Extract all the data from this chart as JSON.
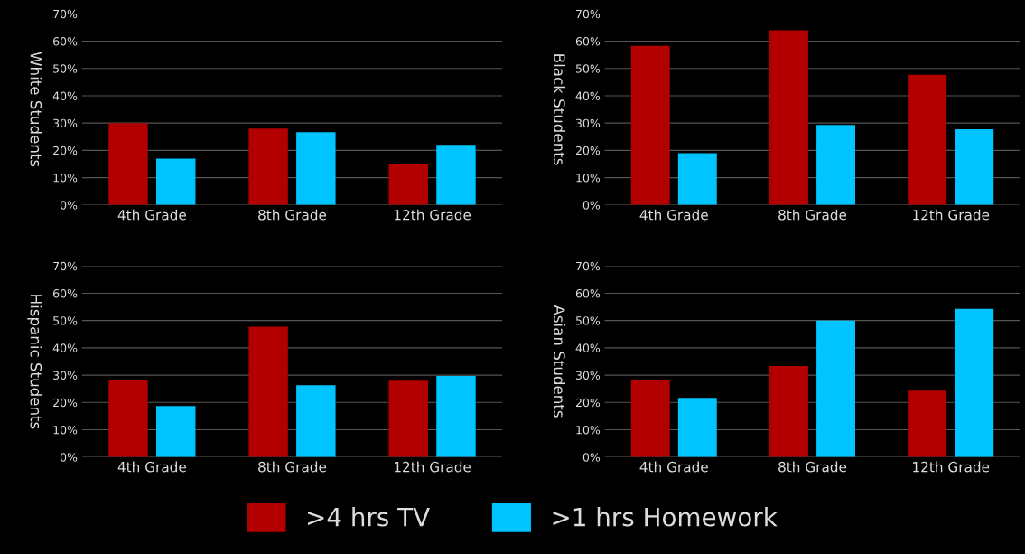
{
  "chart_data": [
    {
      "type": "bar",
      "ylabel": "White Students",
      "categories": [
        "4th Grade",
        "8th Grade",
        "12th Grade"
      ],
      "series": [
        {
          "name": ">4 hrs TV",
          "color": "#b20000",
          "values": [
            30,
            28,
            15
          ]
        },
        {
          "name": ">1 hrs Homework",
          "color": "#00c4ff",
          "values": [
            17,
            26.7,
            22
          ]
        }
      ],
      "ylim": [
        0,
        70
      ],
      "yticks": [
        {
          "value": 0,
          "label": "0%"
        },
        {
          "value": 10,
          "label": "10%"
        },
        {
          "value": 20,
          "label": "20%"
        },
        {
          "value": 30,
          "label": "30%"
        },
        {
          "value": 40,
          "label": "40%"
        },
        {
          "value": 50,
          "label": "50%"
        },
        {
          "value": 60,
          "label": "60%"
        },
        {
          "value": 70,
          "label": "70%"
        }
      ],
      "grid": "y",
      "legend": "bottom"
    },
    {
      "type": "bar",
      "ylabel": "Black Students",
      "categories": [
        "4th Grade",
        "8th Grade",
        "12th Grade"
      ],
      "series": [
        {
          "color": "#b20000",
          "values": [
            58.3,
            64,
            47.7
          ]
        },
        {
          "color": "#00c4ff",
          "values": [
            19,
            29.3,
            27.7
          ]
        }
      ],
      "ylim": [
        0,
        70
      ],
      "yticks": [
        {
          "value": 0,
          "label": "0%"
        },
        {
          "value": 10,
          "label": "10%"
        },
        {
          "value": 20,
          "label": "20%"
        },
        {
          "value": 30,
          "label": "30%"
        },
        {
          "value": 40,
          "label": "40%"
        },
        {
          "value": 50,
          "label": "50%"
        },
        {
          "value": 60,
          "label": "60%"
        },
        {
          "value": 70,
          "label": "70%"
        }
      ],
      "grid": "y"
    },
    {
      "type": "bar",
      "ylabel": "Hispanic Students",
      "categories": [
        "4th Grade",
        "8th Grade",
        "12th Grade"
      ],
      "series": [
        {
          "color": "#b20000",
          "values": [
            28.3,
            47.7,
            28
          ]
        },
        {
          "color": "#00c4ff",
          "values": [
            18.7,
            26.3,
            29.7
          ]
        }
      ],
      "ylim": [
        0,
        70
      ],
      "yticks": [
        {
          "value": 0,
          "label": "0%"
        },
        {
          "value": 10,
          "label": "10%"
        },
        {
          "value": 20,
          "label": "20%"
        },
        {
          "value": 30,
          "label": "30%"
        },
        {
          "value": 40,
          "label": "40%"
        },
        {
          "value": 50,
          "label": "50%"
        },
        {
          "value": 60,
          "label": "60%"
        },
        {
          "value": 70,
          "label": "70%"
        }
      ],
      "grid": "y"
    },
    {
      "type": "bar",
      "ylabel": "Asian Students",
      "categories": [
        "4th Grade",
        "8th Grade",
        "12th Grade"
      ],
      "series": [
        {
          "color": "#b20000",
          "values": [
            28.3,
            33.3,
            24.3
          ]
        },
        {
          "color": "#00c4ff",
          "values": [
            21.7,
            50,
            54.3
          ]
        }
      ],
      "ylim": [
        0,
        70
      ],
      "yticks": [
        {
          "value": 0,
          "label": "0%"
        },
        {
          "value": 10,
          "label": "10%"
        },
        {
          "value": 20,
          "label": "20%"
        },
        {
          "value": 30,
          "label": "30%"
        },
        {
          "value": 40,
          "label": "40%"
        },
        {
          "value": 50,
          "label": "50%"
        },
        {
          "value": 60,
          "label": "60%"
        },
        {
          "value": 70,
          "label": "70%"
        }
      ],
      "grid": "y"
    }
  ]
}
